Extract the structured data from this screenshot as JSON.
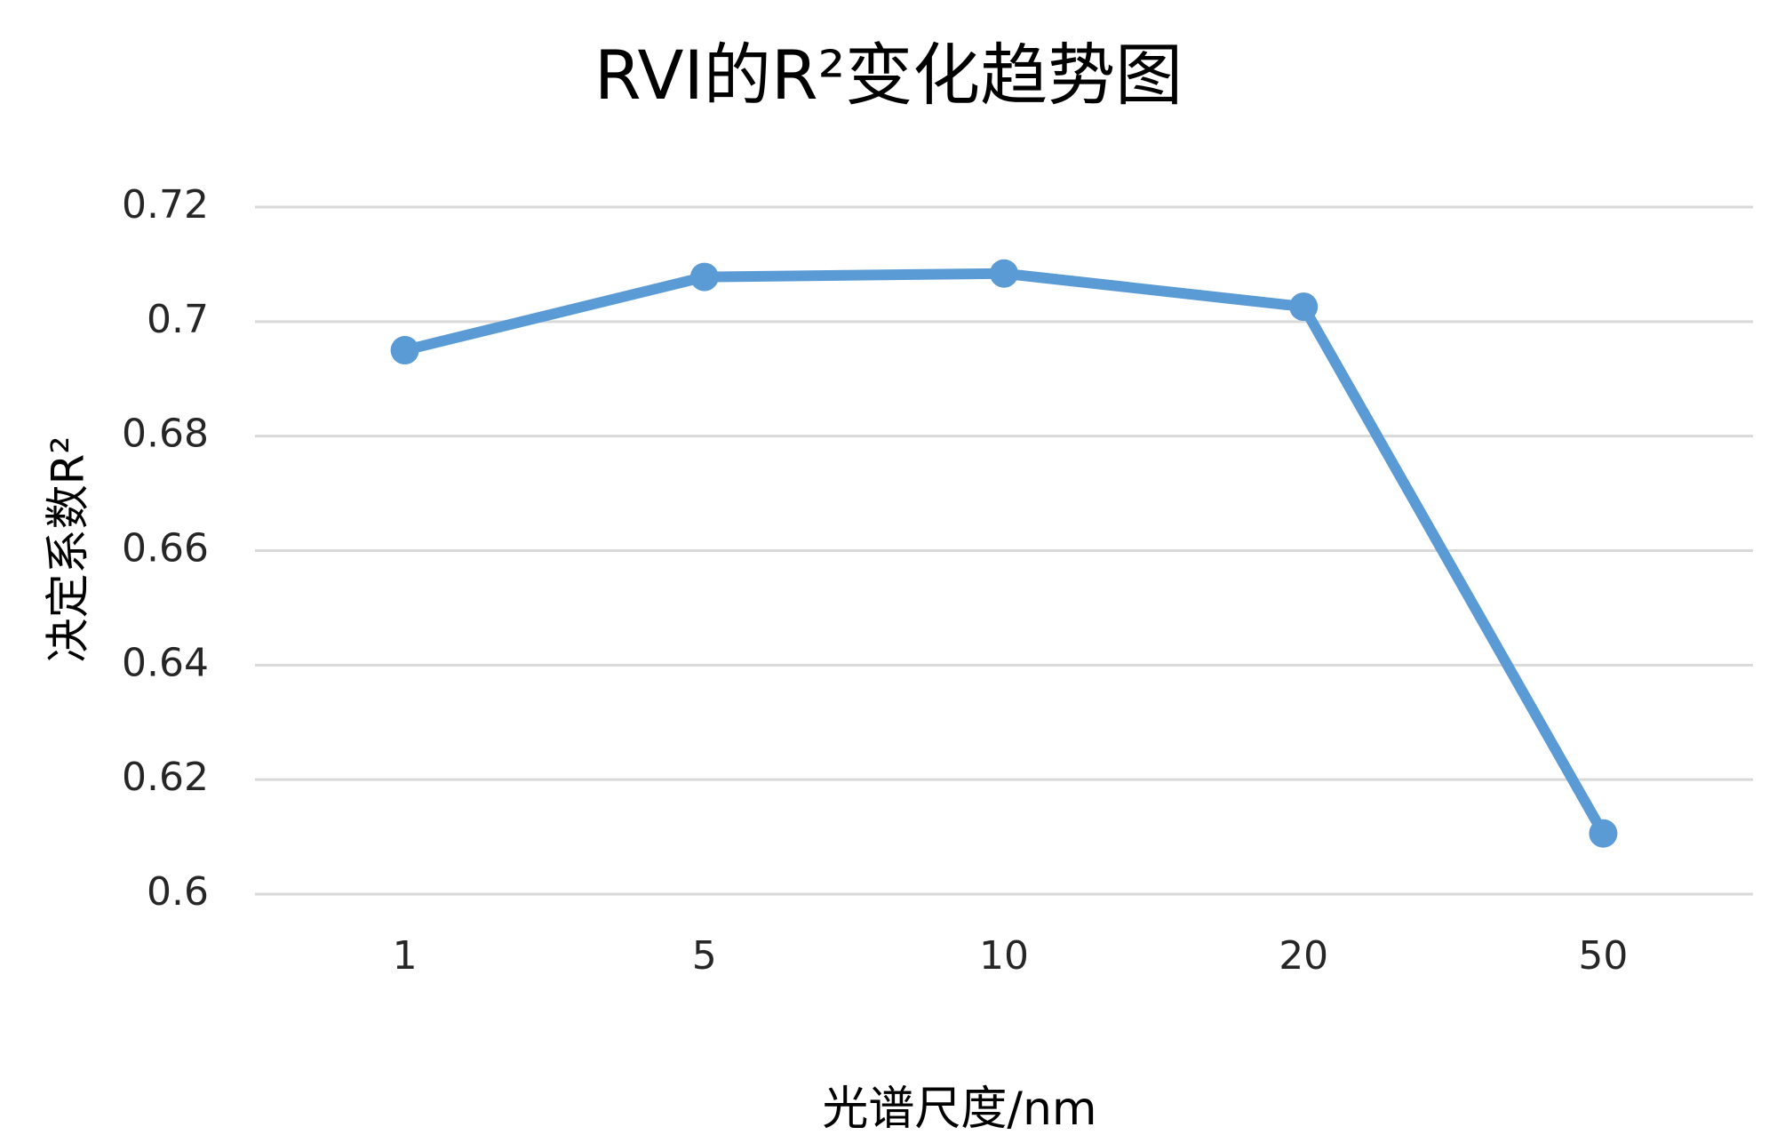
{
  "chart_data": {
    "type": "line",
    "title": "RVI的R²变化趋势图",
    "x_label": "光谱尺度/nm",
    "y_label": "决定系数R²",
    "categories": [
      "1",
      "5",
      "10",
      "20",
      "50"
    ],
    "series": [
      {
        "name": "RVI",
        "color": "#5b9bd5",
        "values": [
          0.695,
          0.7078,
          0.7084,
          0.7026,
          0.6106
        ]
      }
    ],
    "ylim": [
      0.6,
      0.72
    ],
    "yticks": [
      0.6,
      0.62,
      0.64,
      0.66,
      0.68,
      0.7,
      0.72
    ],
    "grid": true
  }
}
